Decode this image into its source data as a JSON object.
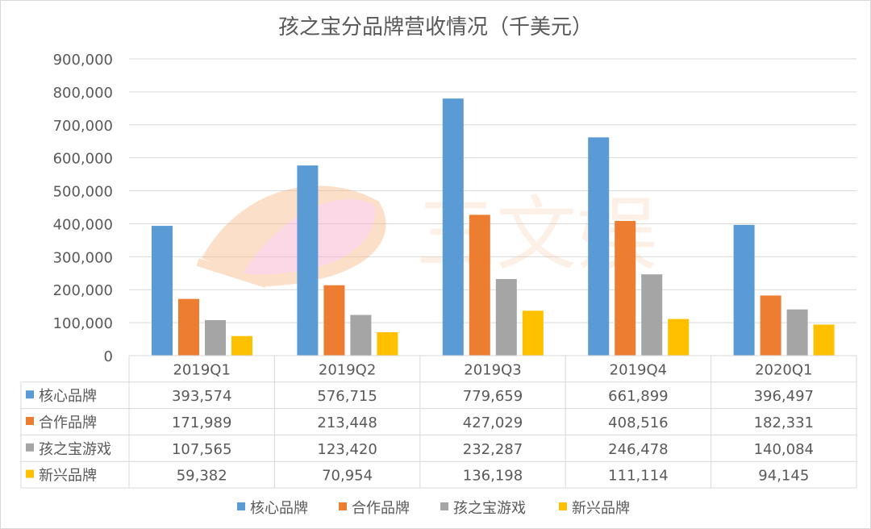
{
  "chart_data": {
    "type": "bar",
    "title": "孩之宝分品牌营收情况（千美元）",
    "categories": [
      "2019Q1",
      "2019Q2",
      "2019Q3",
      "2019Q4",
      "2020Q1"
    ],
    "ylim": [
      0,
      900000
    ],
    "yticks": [
      0,
      100000,
      200000,
      300000,
      400000,
      500000,
      600000,
      700000,
      800000,
      900000
    ],
    "ytick_labels": [
      "0",
      "100,000",
      "200,000",
      "300,000",
      "400,000",
      "500,000",
      "600,000",
      "700,000",
      "800,000",
      "900,000"
    ],
    "grid": true,
    "legend_position": "bottom",
    "series": [
      {
        "name": "核心品牌",
        "color": "#5b9bd5",
        "values": [
          393574,
          576715,
          779659,
          661899,
          396497
        ],
        "labels": [
          "393,574",
          "576,715",
          "779,659",
          "661,899",
          "396,497"
        ]
      },
      {
        "name": "合作品牌",
        "color": "#ed7d31",
        "values": [
          171989,
          213448,
          427029,
          408516,
          182331
        ],
        "labels": [
          "171,989",
          "213,448",
          "427,029",
          "408,516",
          "182,331"
        ]
      },
      {
        "name": "孩之宝游戏",
        "color": "#a5a5a5",
        "values": [
          107565,
          123420,
          232287,
          246478,
          140084
        ],
        "labels": [
          "107,565",
          "123,420",
          "232,287",
          "246,478",
          "140,084"
        ]
      },
      {
        "name": "新兴品牌",
        "color": "#ffc000",
        "values": [
          59382,
          70954,
          136198,
          111114,
          94145
        ],
        "labels": [
          "59,382",
          "70,954",
          "136,198",
          "111,114",
          "94,145"
        ]
      }
    ]
  },
  "watermark": {
    "text": "三文娱"
  }
}
